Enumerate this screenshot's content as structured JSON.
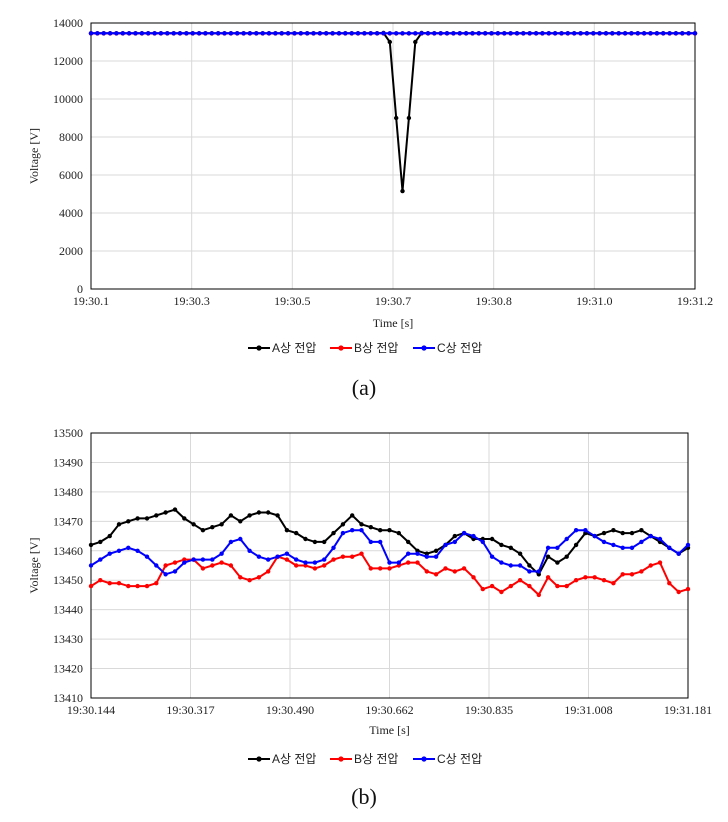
{
  "chart_data": [
    {
      "type": "line",
      "caption": "(a)",
      "xlabel": "Time [s]",
      "ylabel": "Voltage [V]",
      "ylim": [
        0,
        14000
      ],
      "yticks": [
        "0",
        "2000",
        "4000",
        "6000",
        "8000",
        "10000",
        "12000",
        "14000"
      ],
      "xticks": [
        "19:30.1",
        "19:30.3",
        "19:30.5",
        "19:30.7",
        "19:30.8",
        "19:31.0",
        "19:31.2"
      ],
      "grid": true,
      "legend_position": "bottom",
      "series": [
        {
          "name": "A상 전압",
          "color": "#000000",
          "values": [
            13460,
            13460,
            13460,
            13460,
            13460,
            13460,
            13460,
            13460,
            13460,
            13460,
            13460,
            13460,
            13460,
            13460,
            13460,
            13460,
            13460,
            13460,
            13460,
            13460,
            13460,
            13460,
            13460,
            13460,
            13460,
            13460,
            13460,
            13460,
            13460,
            13460,
            13460,
            13460,
            13460,
            13460,
            13460,
            13460,
            13460,
            13460,
            13460,
            13460,
            13460,
            13460,
            13460,
            13460,
            13460,
            13460,
            13480,
            13000,
            9000,
            5150,
            9000,
            13000,
            13480,
            13460,
            13460,
            13460,
            13460,
            13460,
            13460,
            13460,
            13460,
            13460,
            13460,
            13460,
            13460,
            13460,
            13460,
            13460,
            13460,
            13460,
            13460,
            13460,
            13460,
            13460,
            13460,
            13460,
            13460,
            13460,
            13460,
            13460,
            13460,
            13460,
            13460,
            13460,
            13460,
            13460,
            13460,
            13460,
            13460,
            13460,
            13460,
            13460,
            13460,
            13460,
            13460,
            13460
          ]
        },
        {
          "name": "B상 전압",
          "color": "#ff0000",
          "values": [
            13450,
            13450,
            13450,
            13450,
            13450,
            13450,
            13450,
            13450,
            13450,
            13450,
            13450,
            13450,
            13450,
            13450,
            13450,
            13450,
            13450,
            13450,
            13450,
            13450,
            13450,
            13450,
            13450,
            13450,
            13450,
            13450,
            13450,
            13450,
            13450,
            13450,
            13450,
            13450,
            13450,
            13450,
            13450,
            13450,
            13450,
            13450,
            13450,
            13450,
            13450,
            13450,
            13450,
            13450,
            13450,
            13450,
            13450,
            13450,
            13450,
            13450,
            13450,
            13450,
            13450,
            13450,
            13450,
            13450,
            13450,
            13450,
            13450,
            13450,
            13450,
            13450,
            13450,
            13450,
            13450,
            13450,
            13450,
            13450,
            13450,
            13450,
            13450,
            13450,
            13450,
            13450,
            13450,
            13450,
            13450,
            13450,
            13450,
            13450,
            13450,
            13450,
            13450,
            13450,
            13450,
            13450,
            13450,
            13450,
            13450,
            13450,
            13450,
            13450,
            13450,
            13450,
            13450,
            13450
          ]
        },
        {
          "name": "C상 전압",
          "color": "#0000ff",
          "values": [
            13458,
            13458,
            13458,
            13458,
            13458,
            13458,
            13458,
            13458,
            13458,
            13458,
            13458,
            13458,
            13458,
            13458,
            13458,
            13458,
            13458,
            13458,
            13458,
            13458,
            13458,
            13458,
            13458,
            13458,
            13458,
            13458,
            13458,
            13458,
            13458,
            13458,
            13458,
            13458,
            13458,
            13458,
            13458,
            13458,
            13458,
            13458,
            13458,
            13458,
            13458,
            13458,
            13458,
            13458,
            13458,
            13458,
            13458,
            13458,
            13458,
            13458,
            13458,
            13458,
            13458,
            13458,
            13458,
            13458,
            13458,
            13458,
            13458,
            13458,
            13458,
            13458,
            13458,
            13458,
            13458,
            13458,
            13458,
            13458,
            13458,
            13458,
            13458,
            13458,
            13458,
            13458,
            13458,
            13458,
            13458,
            13458,
            13458,
            13458,
            13458,
            13458,
            13458,
            13458,
            13458,
            13458,
            13458,
            13458,
            13458,
            13458,
            13458,
            13458,
            13458,
            13458,
            13458,
            13458
          ]
        }
      ]
    },
    {
      "type": "line",
      "caption": "(b)",
      "xlabel": "Time [s]",
      "ylabel": "Voltage [V]",
      "ylim": [
        13410,
        13500
      ],
      "yticks": [
        "13410",
        "13420",
        "13430",
        "13440",
        "13450",
        "13460",
        "13470",
        "13480",
        "13490",
        "13500"
      ],
      "xticks": [
        "19:30.144",
        "19:30.317",
        "19:30.490",
        "19:30.662",
        "19:30.835",
        "19:31.008",
        "19:31.181"
      ],
      "grid": true,
      "legend_position": "bottom",
      "series": [
        {
          "name": "A상 전압",
          "color": "#000000",
          "values": [
            13462,
            13463,
            13465,
            13469,
            13470,
            13471,
            13471,
            13472,
            13473,
            13474,
            13471,
            13469,
            13467,
            13468,
            13469,
            13472,
            13470,
            13472,
            13473,
            13473,
            13472,
            13467,
            13466,
            13464,
            13463,
            13463,
            13466,
            13469,
            13472,
            13469,
            13468,
            13467,
            13467,
            13466,
            13463,
            13460,
            13459,
            13460,
            13462,
            13465,
            13466,
            13464,
            13464,
            13464,
            13462,
            13461,
            13459,
            13455,
            13452,
            13458,
            13456,
            13458,
            13462,
            13466,
            13465,
            13466,
            13467,
            13466,
            13466,
            13467,
            13465,
            13463,
            13461,
            13459,
            13461
          ]
        },
        {
          "name": "B상 전압",
          "color": "#ff0000",
          "values": [
            13448,
            13450,
            13449,
            13449,
            13448,
            13448,
            13448,
            13449,
            13455,
            13456,
            13457,
            13457,
            13454,
            13455,
            13456,
            13455,
            13451,
            13450,
            13451,
            13453,
            13458,
            13457,
            13455,
            13455,
            13454,
            13455,
            13457,
            13458,
            13458,
            13459,
            13454,
            13454,
            13454,
            13455,
            13456,
            13456,
            13453,
            13452,
            13454,
            13453,
            13454,
            13451,
            13447,
            13448,
            13446,
            13448,
            13450,
            13448,
            13445,
            13451,
            13448,
            13448,
            13450,
            13451,
            13451,
            13450,
            13449,
            13452,
            13452,
            13453,
            13455,
            13456,
            13449,
            13446,
            13447
          ]
        },
        {
          "name": "C상 전압",
          "color": "#0000ff",
          "values": [
            13455,
            13457,
            13459,
            13460,
            13461,
            13460,
            13458,
            13455,
            13452,
            13453,
            13456,
            13457,
            13457,
            13457,
            13459,
            13463,
            13464,
            13460,
            13458,
            13457,
            13458,
            13459,
            13457,
            13456,
            13456,
            13457,
            13461,
            13466,
            13467,
            13467,
            13463,
            13463,
            13456,
            13456,
            13459,
            13459,
            13458,
            13458,
            13462,
            13463,
            13466,
            13465,
            13463,
            13458,
            13456,
            13455,
            13455,
            13453,
            13453,
            13461,
            13461,
            13464,
            13467,
            13467,
            13465,
            13463,
            13462,
            13461,
            13461,
            13463,
            13465,
            13464,
            13461,
            13459,
            13462
          ]
        }
      ]
    }
  ]
}
